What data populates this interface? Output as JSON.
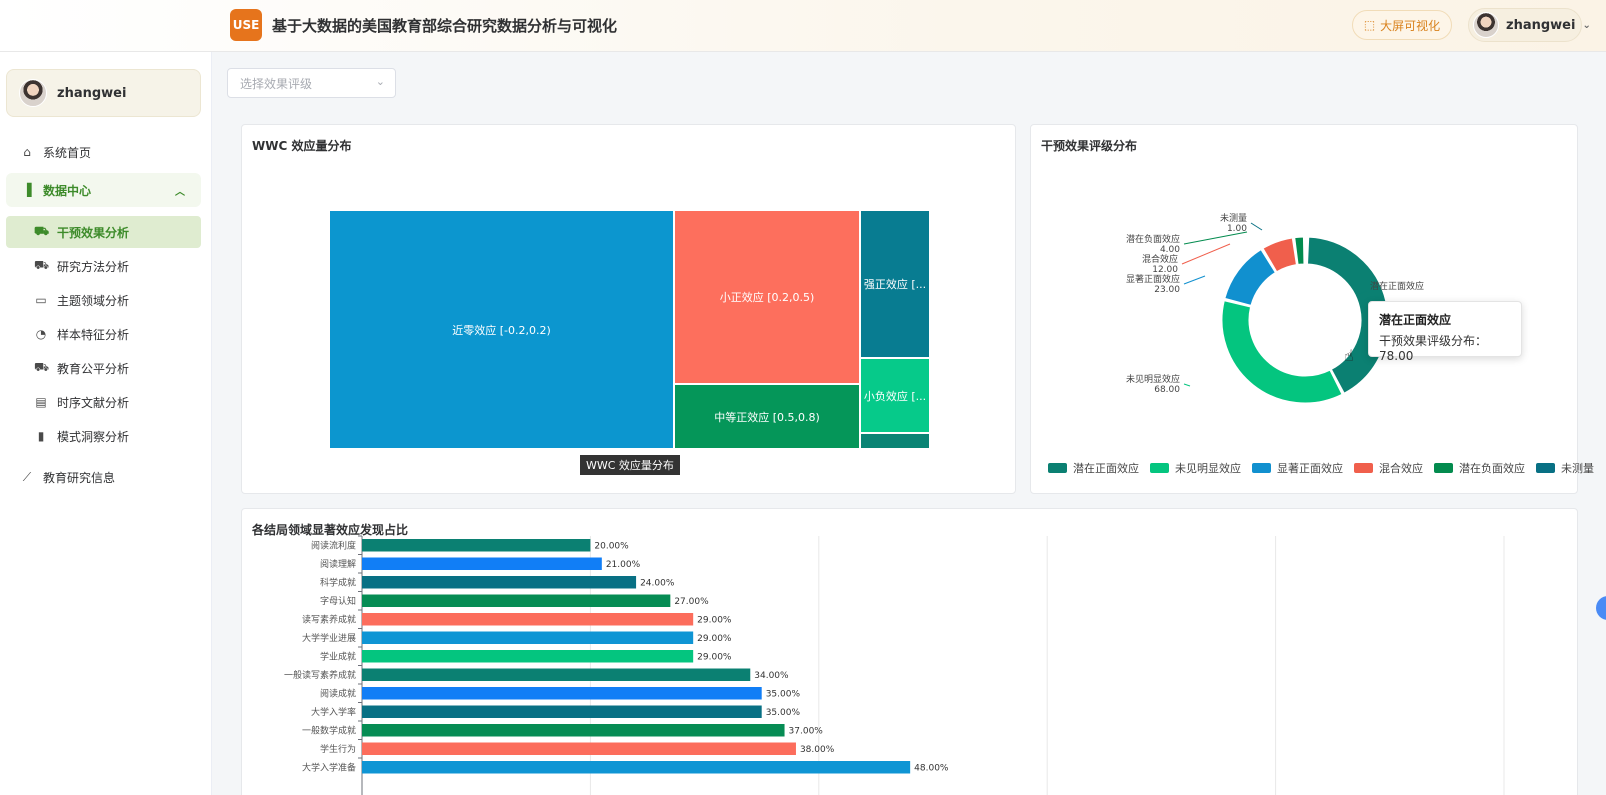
{
  "header": {
    "logo_text": "USE",
    "title": "基于大数据的美国教育部综合研究数据分析与可视化",
    "screen_button": "大屏可视化",
    "user_name": "zhangwei"
  },
  "sidebar": {
    "user_name": "zhangwei",
    "home": "系统首页",
    "data_center": "数据中心",
    "sub_items": [
      "干预效果分析",
      "研究方法分析",
      "主题领域分析",
      "样本特征分析",
      "教育公平分析",
      "时序文献分析",
      "模式洞察分析"
    ],
    "research_info": "教育研究信息"
  },
  "filter": {
    "placeholder": "选择效果评级"
  },
  "treemap": {
    "title": "WWC 效应量分布",
    "caption": "WWC 效应量分布",
    "cells": [
      {
        "label": "近零效应 [-0.2,0.2)",
        "color": "#0c96cf"
      },
      {
        "label": "小正效应 [0.2,0.5)",
        "color": "#fd6f5d"
      },
      {
        "label": "中等正效应 [0.5,0.8)",
        "color": "#059659"
      },
      {
        "label": "强正效应 [...",
        "color": "#087c91"
      },
      {
        "label": "小负效应 [...",
        "color": "#06ca8a"
      },
      {
        "label": "",
        "color": "#0a8474"
      }
    ]
  },
  "donut": {
    "title": "干预效果评级分布",
    "series_name": "干预效果评级分布",
    "slices": [
      {
        "name": "潜在正面效应",
        "value": 78.0,
        "color": "#0b8072"
      },
      {
        "name": "未见明显效应",
        "value": 68.0,
        "color": "#04c57f"
      },
      {
        "name": "显著正面效应",
        "value": 23.0,
        "color": "#1190cf"
      },
      {
        "name": "混合效应",
        "value": 12.0,
        "color": "#f05f4c"
      },
      {
        "name": "潜在负面效应",
        "value": 4.0,
        "color": "#038b4e"
      },
      {
        "name": "未测量",
        "value": 1.0,
        "color": "#087084"
      }
    ],
    "labels": [
      "潜在正面效应",
      "未见明显效应",
      "显著正面效应",
      "混合效应",
      "潜在负面效应",
      "未测量"
    ],
    "label_values": [
      "78.00",
      "68.00",
      "23.00",
      "12.00",
      "4.00",
      "1.00"
    ],
    "legend": [
      "潜在正面效应",
      "未见明显效应",
      "显著正面效应",
      "混合效应",
      "潜在负面效应",
      "未测量"
    ],
    "tooltip": {
      "name": "潜在正面效应",
      "value": "干预效果评级分布：78.00"
    }
  },
  "bars_card": {
    "title": "各结局领域显著效应发现占比"
  },
  "chart_data": [
    {
      "type": "bar",
      "orientation": "horizontal",
      "title": "各结局领域显著效应发现占比",
      "categories": [
        "阅读流利度",
        "阅读理解",
        "科学成就",
        "字母认知",
        "读写素养成就",
        "大学学业进展",
        "学业成就",
        "一般读写素养成就",
        "阅读成就",
        "大学入学率",
        "一般数学成就",
        "学生行为",
        "大学入学准备"
      ],
      "values": [
        20.0,
        21.0,
        24.0,
        27.0,
        29.0,
        29.0,
        29.0,
        34.0,
        35.0,
        35.0,
        37.0,
        38.0,
        48.0
      ],
      "value_labels": [
        "20.00%",
        "21.00%",
        "24.00%",
        "27.00%",
        "29.00%",
        "29.00%",
        "29.00%",
        "34.00%",
        "35.00%",
        "35.00%",
        "37.00%",
        "38.00%",
        "48.00%"
      ],
      "colors": [
        "#0b8072",
        "#117ef6",
        "#087084",
        "#068c54",
        "#fc6d5c",
        "#0f95d4",
        "#04c57f",
        "#0b8072",
        "#117ef6",
        "#087084",
        "#068c54",
        "#fc6d5c",
        "#0f95d4"
      ],
      "xlim": [
        0,
        100
      ]
    },
    {
      "type": "pie",
      "title": "干预效果评级分布",
      "categories": [
        "潜在正面效应",
        "未见明显效应",
        "显著正面效应",
        "混合效应",
        "潜在负面效应",
        "未测量"
      ],
      "values": [
        78.0,
        68.0,
        23.0,
        12.0,
        4.0,
        1.0
      ],
      "legend_position": "bottom"
    }
  ]
}
